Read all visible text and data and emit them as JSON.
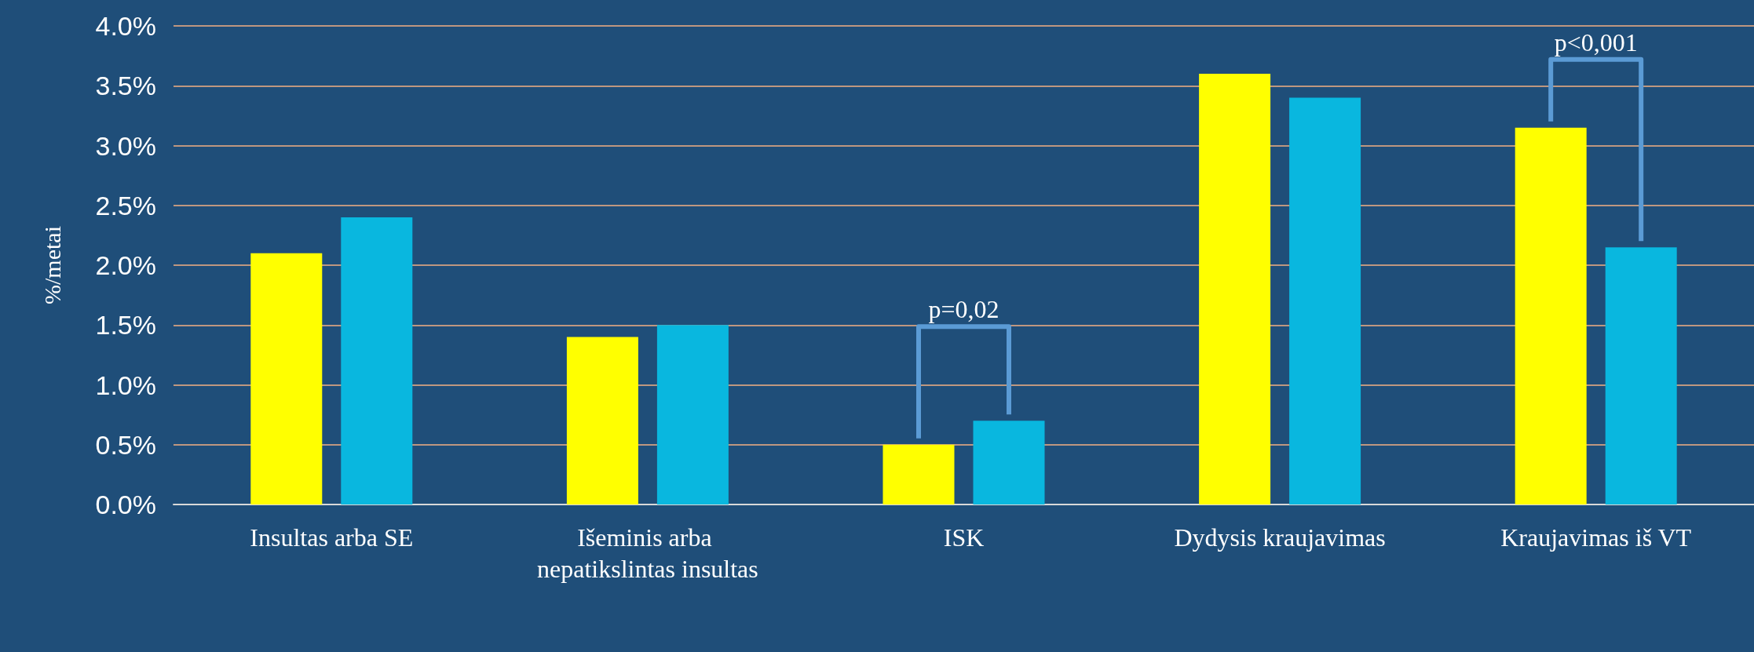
{
  "chart_data": {
    "type": "bar",
    "ylabel": "%/metai",
    "categories": [
      "Insultas arba SE",
      "Išeminis arba nepatikslintas insultas",
      "ISK",
      "Dydysis kraujavimas",
      "Kraujavimas iš VT"
    ],
    "series": [
      {
        "color": "#ffff00",
        "values": [
          2.1,
          1.4,
          0.5,
          3.6,
          3.15
        ]
      },
      {
        "color": "#09b7df",
        "values": [
          2.4,
          1.5,
          0.7,
          3.4,
          2.15
        ]
      }
    ],
    "ylim": [
      0,
      4
    ],
    "yticks": [
      {
        "value": 0,
        "label": "0.0%"
      },
      {
        "value": 0.5,
        "label": "0.5%"
      },
      {
        "value": 1,
        "label": "1.0%"
      },
      {
        "value": 1.5,
        "label": "1.5%"
      },
      {
        "value": 2,
        "label": "2.0%"
      },
      {
        "value": 2.5,
        "label": "2.5%"
      },
      {
        "value": 3,
        "label": "3.0%"
      },
      {
        "value": 3.5,
        "label": "3.5%"
      },
      {
        "value": 4,
        "label": "4.0%"
      }
    ],
    "grid": "y",
    "annotations": [
      "p=0,02",
      "p<0,001"
    ]
  }
}
